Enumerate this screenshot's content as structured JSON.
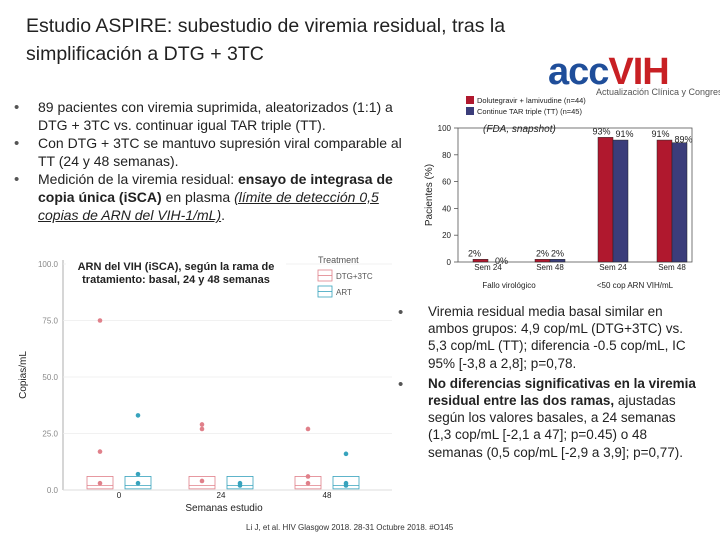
{
  "slide": {
    "title": "Estudio ASPIRE: subestudio de viremia residual, tras la simplificación a DTG + 3TC",
    "logo": {
      "acc": "acc",
      "vih": "VIH",
      "tagline": "Actualización Clínica y Congresos"
    },
    "bullets": [
      {
        "text": "89 pacientes con viremia suprimida, aleatorizados (1:1) a DTG + 3TC vs. continuar igual TAR triple (TT)."
      },
      {
        "text": "Con DTG + 3TC se mantuvo supresión viral comparable al TT (24 y 48 semanas)."
      },
      {
        "pre": "Medición de la viremia residual: ",
        "bold": "ensayo de integrasa de copia única (iSCA)",
        "mid": " en plasma ",
        "underline": "(límite de detección 0,5 copias de ARN del VIH-1/mL)",
        "post": "."
      }
    ],
    "right_bullets": [
      {
        "text": "Viremia residual media basal similar en ambos grupos: 4,9 cop/mL (DTG+3TC) vs. 5,3 cop/mL (TT); diferencia -0.5 cop/mL, IC 95% [-3,8 a 2,8]; p=0,78."
      },
      {
        "bold": "No diferencias significativas en la viremia residual entre las dos ramas,",
        "rest": " ajustadas según los valores basales, a 24 semanas (1,3 cop/mL [-2,1 a 47]; p=0.45) o 48 semanas (0,5 cop/mL [-2,9 a 3,9]; p=0,77)."
      }
    ],
    "citation": "Li J, et al. HIV Glasgow 2018. 28-31 Octubre 2018. #O145"
  },
  "chart_data": [
    {
      "type": "bar",
      "legend": [
        "Dolutegravir + lamivudine (n=44)",
        "Continue TAR triple (TT) (n=45)"
      ],
      "legend_note": "(FDA, snapshot)",
      "colors": [
        "#b0182e",
        "#3b3d7a"
      ],
      "ylabel": "Pacientes (%)",
      "ylim": [
        0,
        100
      ],
      "yticks": [
        0,
        20,
        40,
        60,
        80,
        100
      ],
      "categories": [
        "Sem 24",
        "Sem 48",
        "Sem 24",
        "Sem 48"
      ],
      "groups": [
        "Fallo virológico",
        "<50 cop ARN VIH/mL"
      ],
      "series": [
        {
          "name": "Dolutegravir + lamivudine (n=44)",
          "values": [
            2,
            2,
            93,
            91
          ],
          "labels": [
            "2%",
            "2%",
            "93%",
            "91%"
          ]
        },
        {
          "name": "Continue TAR triple (TT) (n=45)",
          "values": [
            0,
            2,
            91,
            89
          ],
          "labels": [
            "0%",
            "2%",
            "91%",
            "89%"
          ]
        }
      ]
    },
    {
      "type": "scatter",
      "annotation": "ARN del VIH (iSCA), según la rama de tratamiento: basal, 24 y 48 semanas",
      "legend_title": "Treatment",
      "legend": [
        "DTG+3TC",
        "ART"
      ],
      "colors": [
        "#e0808a",
        "#37a3bd"
      ],
      "xlabel": "Semanas estudio",
      "ylabel": "Copias/mL",
      "x_categories": [
        "0",
        "24",
        "48"
      ],
      "ylim": [
        0,
        100
      ],
      "yticks": [
        0,
        25,
        50,
        75,
        100
      ],
      "series": [
        {
          "name": "DTG+3TC",
          "points": [
            [
              0,
              75
            ],
            [
              0,
              17
            ],
            [
              0,
              3
            ],
            [
              24,
              27
            ],
            [
              24,
              29
            ],
            [
              24,
              4
            ],
            [
              48,
              27
            ],
            [
              48,
              6
            ],
            [
              48,
              3
            ]
          ]
        },
        {
          "name": "ART",
          "points": [
            [
              0,
              33
            ],
            [
              0,
              7
            ],
            [
              0,
              3
            ],
            [
              24,
              3
            ],
            [
              24,
              2
            ],
            [
              48,
              16
            ],
            [
              48,
              3
            ],
            [
              48,
              2
            ]
          ]
        }
      ]
    }
  ]
}
